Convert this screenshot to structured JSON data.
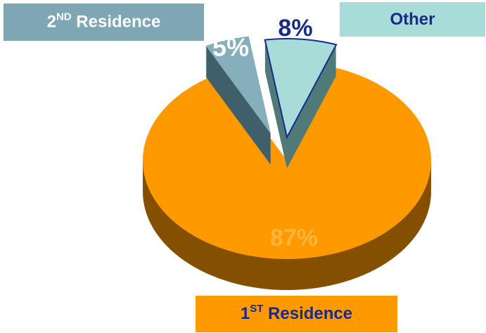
{
  "chart_data": {
    "type": "pie",
    "categories": [
      "1ST Residence",
      "2ND Residence",
      "Other"
    ],
    "values": [
      87,
      5,
      8
    ],
    "value_labels": [
      "87%",
      "5%",
      "8%"
    ],
    "colors": [
      "#ff9900",
      "#86aebb",
      "#a8dcd8"
    ]
  }
}
